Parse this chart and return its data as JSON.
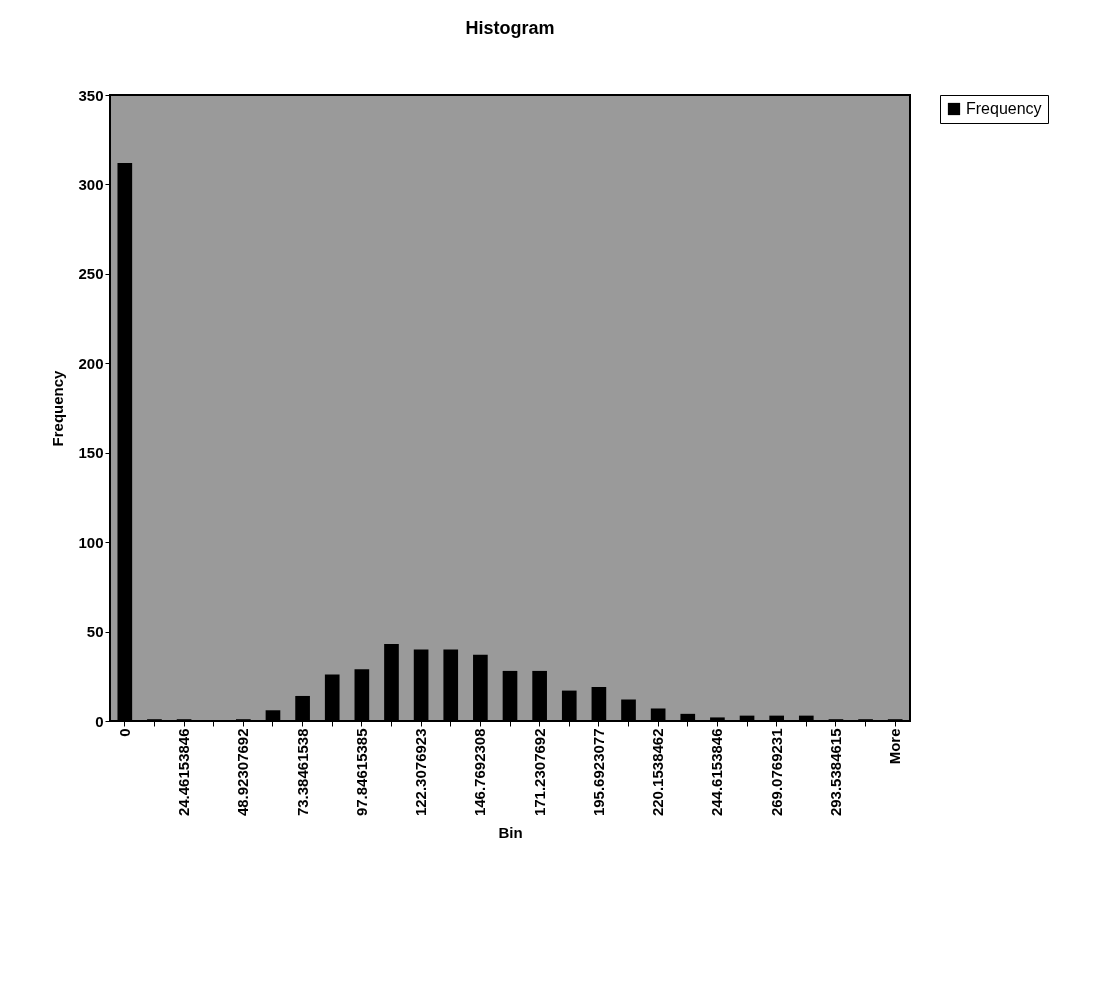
{
  "chart_data": {
    "type": "bar",
    "title": "Histogram",
    "xlabel": "Bin",
    "ylabel": "Frequency",
    "categories": [
      "0",
      null,
      "24.46153846",
      null,
      "48.92307692",
      null,
      "73.38461538",
      null,
      "97.84615385",
      null,
      "122.3076923",
      null,
      "146.7692308",
      null,
      "171.2307692",
      null,
      "195.6923077",
      null,
      "220.1538462",
      null,
      "244.6153846",
      null,
      "269.0769231",
      null,
      "293.5384615",
      null,
      "More"
    ],
    "series": [
      {
        "name": "Frequency",
        "color": "#000000",
        "values": [
          312,
          1,
          1,
          0,
          1,
          6,
          14,
          26,
          29,
          43,
          40,
          40,
          37,
          28,
          28,
          17,
          19,
          12,
          7,
          4,
          2,
          3,
          3,
          3,
          1,
          1,
          1
        ]
      }
    ],
    "ylim": [
      0,
      350
    ],
    "yticks": [
      0,
      50,
      100,
      150,
      200,
      250,
      300,
      350
    ],
    "grid": false,
    "legend": "right"
  }
}
